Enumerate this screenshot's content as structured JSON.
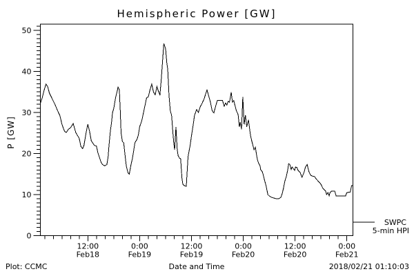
{
  "title": "Hemispheric Power [GW]",
  "legend": {
    "series": "SWPC",
    "description": "5-min HPI"
  },
  "footer": {
    "source": "Plot: CCMC",
    "generated": "2018/02/21 01:10:03"
  },
  "colors": {
    "line": "#000000",
    "background": "#ffffff",
    "text": "#000000"
  },
  "chart_data": {
    "type": "line",
    "title": "Hemispheric Power [GW]",
    "xlabel": "Date and Time",
    "ylabel": "P [GW]",
    "x_hours_origin": "Feb18 00:00",
    "xlim_hours": [
      1.0,
      73.4
    ],
    "ylim": [
      0,
      51.5
    ],
    "grid": false,
    "legend_position": "outside-right-bottom",
    "x_major_ticks": [
      {
        "hour": 12,
        "time": "12:00",
        "date": "Feb18"
      },
      {
        "hour": 24,
        "time": "0:00",
        "date": "Feb19"
      },
      {
        "hour": 36,
        "time": "12:00",
        "date": "Feb19"
      },
      {
        "hour": 48,
        "time": "0:00",
        "date": "Feb20"
      },
      {
        "hour": 60,
        "time": "12:00",
        "date": "Feb20"
      },
      {
        "hour": 72,
        "time": "0:00",
        "date": "Feb21"
      }
    ],
    "x_minor_step_hours": 2,
    "y_major_ticks": [
      0,
      10,
      20,
      30,
      40,
      50
    ],
    "y_minor_step": 1,
    "series": [
      {
        "name": "SWPC",
        "description": "5-min HPI",
        "color": "#000000",
        "points": [
          [
            1.0,
            32.2
          ],
          [
            1.5,
            33.8
          ],
          [
            1.9,
            35.5
          ],
          [
            2.3,
            36.9
          ],
          [
            2.7,
            36.3
          ],
          [
            3.1,
            34.7
          ],
          [
            3.9,
            33.0
          ],
          [
            4.4,
            31.9
          ],
          [
            5.0,
            30.4
          ],
          [
            5.5,
            29.3
          ],
          [
            6.0,
            27.1
          ],
          [
            6.6,
            25.4
          ],
          [
            7.0,
            25.1
          ],
          [
            7.5,
            25.9
          ],
          [
            8.0,
            26.3
          ],
          [
            8.6,
            27.3
          ],
          [
            9.2,
            25.1
          ],
          [
            10.0,
            23.7
          ],
          [
            10.4,
            21.7
          ],
          [
            10.8,
            21.2
          ],
          [
            11.1,
            22.0
          ],
          [
            11.6,
            25.1
          ],
          [
            12.0,
            27.1
          ],
          [
            12.4,
            25.4
          ],
          [
            12.8,
            23.1
          ],
          [
            13.5,
            22.0
          ],
          [
            14.0,
            21.8
          ],
          [
            14.3,
            20.3
          ],
          [
            14.8,
            18.7
          ],
          [
            15.1,
            17.8
          ],
          [
            15.4,
            17.3
          ],
          [
            15.9,
            17.0
          ],
          [
            16.4,
            17.3
          ],
          [
            16.7,
            19.2
          ],
          [
            16.9,
            22.0
          ],
          [
            17.2,
            25.4
          ],
          [
            17.5,
            27.6
          ],
          [
            17.7,
            29.9
          ],
          [
            18.0,
            31.0
          ],
          [
            18.4,
            33.5
          ],
          [
            18.8,
            35.2
          ],
          [
            19.0,
            36.2
          ],
          [
            19.3,
            35.5
          ],
          [
            19.5,
            30.4
          ],
          [
            19.7,
            25.0
          ],
          [
            20.0,
            22.9
          ],
          [
            20.3,
            22.6
          ],
          [
            20.6,
            19.8
          ],
          [
            20.9,
            17.0
          ],
          [
            21.3,
            15.3
          ],
          [
            21.6,
            15.0
          ],
          [
            22.0,
            17.3
          ],
          [
            22.3,
            18.7
          ],
          [
            22.6,
            20.5
          ],
          [
            22.9,
            22.6
          ],
          [
            23.4,
            23.5
          ],
          [
            23.7,
            24.5
          ],
          [
            24.0,
            26.5
          ],
          [
            24.5,
            28.0
          ],
          [
            24.8,
            29.5
          ],
          [
            25.2,
            31.5
          ],
          [
            25.6,
            33.5
          ],
          [
            26.0,
            33.8
          ],
          [
            26.4,
            35.5
          ],
          [
            26.8,
            36.9
          ],
          [
            27.2,
            35.0
          ],
          [
            27.6,
            34.3
          ],
          [
            28.0,
            36.3
          ],
          [
            28.4,
            35.0
          ],
          [
            28.7,
            34.3
          ],
          [
            29.0,
            38.0
          ],
          [
            29.3,
            42.5
          ],
          [
            29.6,
            46.8
          ],
          [
            30.0,
            45.5
          ],
          [
            30.3,
            42.0
          ],
          [
            30.5,
            40.5
          ],
          [
            30.8,
            34.0
          ],
          [
            31.1,
            30.4
          ],
          [
            31.4,
            29.3
          ],
          [
            31.7,
            25.0
          ],
          [
            31.9,
            22.6
          ],
          [
            32.1,
            20.9
          ],
          [
            32.4,
            26.5
          ],
          [
            32.7,
            21.0
          ],
          [
            32.9,
            19.5
          ],
          [
            33.2,
            18.9
          ],
          [
            33.5,
            18.7
          ],
          [
            33.8,
            14.0
          ],
          [
            34.0,
            12.5
          ],
          [
            34.3,
            12.2
          ],
          [
            34.8,
            12.0
          ],
          [
            35.2,
            19.2
          ],
          [
            35.7,
            22.0
          ],
          [
            36.0,
            24.3
          ],
          [
            36.4,
            27.0
          ],
          [
            36.7,
            29.3
          ],
          [
            37.2,
            30.7
          ],
          [
            37.6,
            30.0
          ],
          [
            38.0,
            31.3
          ],
          [
            38.4,
            32.1
          ],
          [
            38.9,
            33.2
          ],
          [
            39.6,
            35.5
          ],
          [
            40.0,
            34.0
          ],
          [
            40.4,
            32.5
          ],
          [
            40.8,
            30.4
          ],
          [
            41.2,
            29.9
          ],
          [
            41.6,
            31.5
          ],
          [
            42.0,
            32.9
          ],
          [
            42.9,
            32.9
          ],
          [
            43.2,
            32.9
          ],
          [
            43.6,
            31.5
          ],
          [
            43.9,
            32.3
          ],
          [
            44.2,
            31.8
          ],
          [
            44.5,
            32.7
          ],
          [
            44.8,
            32.5
          ],
          [
            45.2,
            34.9
          ],
          [
            45.5,
            32.5
          ],
          [
            45.8,
            32.9
          ],
          [
            46.0,
            32.0
          ],
          [
            46.4,
            30.4
          ],
          [
            46.8,
            29.5
          ],
          [
            47.1,
            26.5
          ],
          [
            47.3,
            27.6
          ],
          [
            47.6,
            25.9
          ],
          [
            47.9,
            33.8
          ],
          [
            48.2,
            27.1
          ],
          [
            48.5,
            29.3
          ],
          [
            48.8,
            26.5
          ],
          [
            49.2,
            28.2
          ],
          [
            49.5,
            25.7
          ],
          [
            49.7,
            24.3
          ],
          [
            50.0,
            22.9
          ],
          [
            50.3,
            21.7
          ],
          [
            50.5,
            20.9
          ],
          [
            50.8,
            21.5
          ],
          [
            51.1,
            19.5
          ],
          [
            51.3,
            18.4
          ],
          [
            51.6,
            17.5
          ],
          [
            51.9,
            17.0
          ],
          [
            52.0,
            16.1
          ],
          [
            52.4,
            15.6
          ],
          [
            52.7,
            14.5
          ],
          [
            52.9,
            13.6
          ],
          [
            53.2,
            12.5
          ],
          [
            53.5,
            11.0
          ],
          [
            53.7,
            10.0
          ],
          [
            54.0,
            9.7
          ],
          [
            54.4,
            9.4
          ],
          [
            54.9,
            9.2
          ],
          [
            55.6,
            9.0
          ],
          [
            56.2,
            9.0
          ],
          [
            56.7,
            9.3
          ],
          [
            57.0,
            10.2
          ],
          [
            57.3,
            11.5
          ],
          [
            57.6,
            13.1
          ],
          [
            58.0,
            14.5
          ],
          [
            58.3,
            16.0
          ],
          [
            58.5,
            17.5
          ],
          [
            58.8,
            17.3
          ],
          [
            59.1,
            16.1
          ],
          [
            59.3,
            16.7
          ],
          [
            59.6,
            16.3
          ],
          [
            59.9,
            15.9
          ],
          [
            60.1,
            16.7
          ],
          [
            60.4,
            16.6
          ],
          [
            60.7,
            15.9
          ],
          [
            61.2,
            15.3
          ],
          [
            61.6,
            14.2
          ],
          [
            62.1,
            15.5
          ],
          [
            62.4,
            16.7
          ],
          [
            62.8,
            17.3
          ],
          [
            63.2,
            15.6
          ],
          [
            63.6,
            14.7
          ],
          [
            64.0,
            14.5
          ],
          [
            64.5,
            14.4
          ],
          [
            64.8,
            13.9
          ],
          [
            65.5,
            13.1
          ],
          [
            66.0,
            12.5
          ],
          [
            66.4,
            11.6
          ],
          [
            67.1,
            10.8
          ],
          [
            67.3,
            10.0
          ],
          [
            67.6,
            10.5
          ],
          [
            67.9,
            9.7
          ],
          [
            68.1,
            10.5
          ],
          [
            68.4,
            10.8
          ],
          [
            69.2,
            10.8
          ],
          [
            69.5,
            9.7
          ],
          [
            70.8,
            9.7
          ],
          [
            71.7,
            9.7
          ],
          [
            72.0,
            10.5
          ],
          [
            72.8,
            10.6
          ],
          [
            73.1,
            12.2
          ],
          [
            73.4,
            12.2
          ]
        ]
      }
    ]
  }
}
